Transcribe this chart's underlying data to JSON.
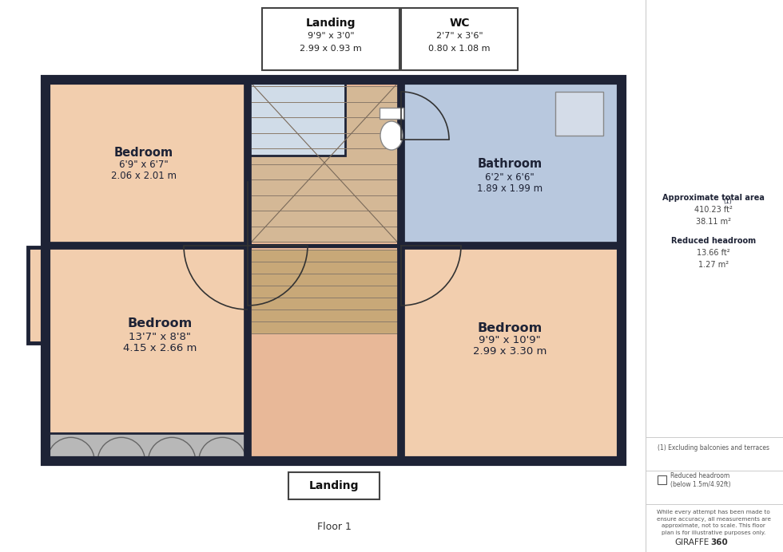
{
  "fig_width": 9.8,
  "fig_height": 6.92,
  "dpi": 100,
  "bg_color": "#ffffff",
  "wall_color": "#1e2336",
  "room_peach": "#f2ceae",
  "room_blue": "#b8c8de",
  "room_landing": "#e8b898",
  "room_gray": "#b8b8b8",
  "stair_fill": "#c8a878",
  "wc_room_fill": "#d0dce8",
  "sidebar_line_color": "#cccccc",
  "text_dark": "#1e2336",
  "text_mid": "#555555",
  "floor_label": "Floor 1",
  "landing_top_label": "Landing",
  "landing_top_d1": "9'9\" x 3'0\"",
  "landing_top_d2": "2.99 x 0.93 m",
  "wc_top_label": "WC",
  "wc_top_d1": "2'7\" x 3'6\"",
  "wc_top_d2": "0.80 x 1.08 m",
  "landing_bot_label": "Landing",
  "bed1_label": "Bedroom",
  "bed1_d1": "6'9\" x 6'7\"",
  "bed1_d2": "2.06 x 2.01 m",
  "bed2_label": "Bedroom",
  "bed2_d1": "13'7\" x 8'8\"",
  "bed2_d2": "4.15 x 2.66 m",
  "bed3_label": "Bedroom",
  "bed3_d1": "9'9\" x 10'9\"",
  "bed3_d2": "2.99 x 3.30 m",
  "bath_label": "Bathroom",
  "bath_d1": "6'2\" x 6'6\"",
  "bath_d2": "1.89 x 1.99 m",
  "sb_area_title": "Approximate total area",
  "sb_area_sup": "(1)",
  "sb_area_ft": "410.23 ft²",
  "sb_area_m": "38.11 m²",
  "sb_reduced_title": "Reduced headroom",
  "sb_reduced_ft": "13.66 ft²",
  "sb_reduced_m": "1.27 m²",
  "sb_note1": "(1) Excluding balconies and terraces",
  "sb_note2": "Reduced headroom\n(below 1.5m/4.92ft)",
  "sb_note3": "While every attempt has been made to\nensure accuracy, all measurements are\napproximate, not to scale. This floor\nplan is for illustrative purposes only.",
  "sb_giraffe1": "GIRAFFE",
  "sb_giraffe2": "360"
}
